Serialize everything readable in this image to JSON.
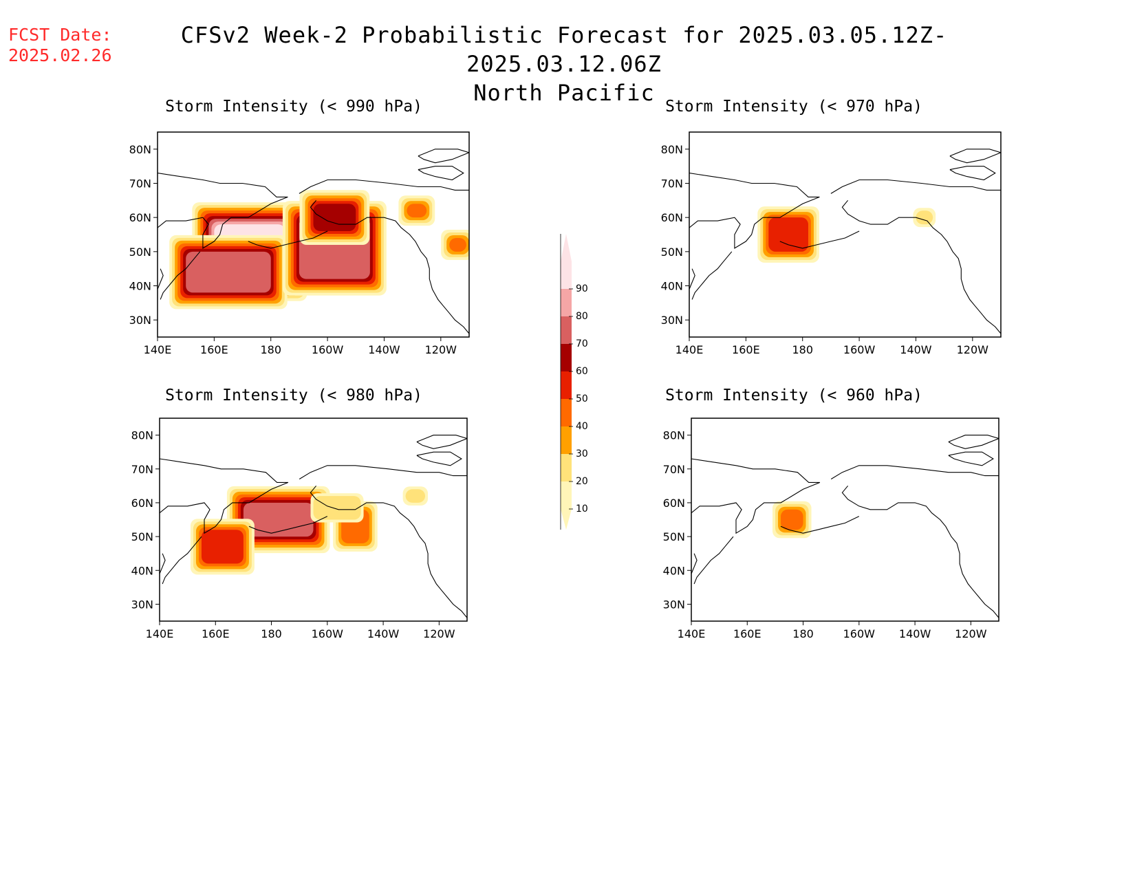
{
  "header": {
    "fcst_label": "FCST Date:",
    "fcst_date": "2025.02.26",
    "title": "CFSv2 Week-2 Probabilistic Forecast for 2025.03.05.12Z-2025.03.12.06Z",
    "subtitle": "North Pacific"
  },
  "axes": {
    "lat_ticks": [
      "80N",
      "70N",
      "60N",
      "50N",
      "40N",
      "30N"
    ],
    "lon_ticks": [
      "140E",
      "160E",
      "180",
      "160W",
      "140W",
      "120W"
    ]
  },
  "panels": [
    {
      "id": "p990",
      "title": "Storm Intensity (< 990 hPa)"
    },
    {
      "id": "p970",
      "title": "Storm Intensity (< 970 hPa)"
    },
    {
      "id": "p980",
      "title": "Storm Intensity (< 980 hPa)"
    },
    {
      "id": "p960",
      "title": "Storm Intensity (< 960 hPa)"
    }
  ],
  "colorbar": {
    "levels": [
      "10",
      "20",
      "30",
      "40",
      "50",
      "60",
      "70",
      "80",
      "90"
    ],
    "colors": [
      "#fff5b8",
      "#ffe27a",
      "#ffa000",
      "#ff6a00",
      "#e82000",
      "#a50000",
      "#d96060",
      "#f5a6a6",
      "#fde3e6"
    ]
  },
  "chart_data": [
    {
      "type": "heatmap",
      "title": "Storm Intensity (< 990 hPa)",
      "region": "North Pacific",
      "lon_range": [
        "140E",
        "110W"
      ],
      "lat_range": [
        "25N",
        "85N"
      ],
      "areas": [
        {
          "level": 90,
          "lon": [
            160,
            185
          ],
          "lat": [
            42,
            58
          ]
        },
        {
          "level": 70,
          "lon": [
            150,
            180
          ],
          "lat": [
            38,
            50
          ]
        },
        {
          "level": 70,
          "lon": [
            190,
            215
          ],
          "lat": [
            42,
            60
          ]
        },
        {
          "level": 60,
          "lon": [
            195,
            210
          ],
          "lat": [
            56,
            64
          ]
        },
        {
          "level": 40,
          "lon": [
            228,
            235
          ],
          "lat": [
            60,
            64
          ]
        },
        {
          "level": 40,
          "lon": [
            243,
            249
          ],
          "lat": [
            50,
            54
          ]
        }
      ]
    },
    {
      "type": "heatmap",
      "title": "Storm Intensity (< 970 hPa)",
      "areas": [
        {
          "level": 50,
          "lon": [
            168,
            182
          ],
          "lat": [
            50,
            60
          ]
        },
        {
          "level": 20,
          "lon": [
            220,
            226
          ],
          "lat": [
            58,
            62
          ]
        }
      ]
    },
    {
      "type": "heatmap",
      "title": "Storm Intensity (< 980 hPa)",
      "areas": [
        {
          "level": 70,
          "lon": [
            170,
            195
          ],
          "lat": [
            50,
            60
          ]
        },
        {
          "level": 50,
          "lon": [
            155,
            170
          ],
          "lat": [
            42,
            52
          ]
        },
        {
          "level": 40,
          "lon": [
            205,
            215
          ],
          "lat": [
            48,
            58
          ]
        },
        {
          "level": 20,
          "lon": [
            195,
            212
          ],
          "lat": [
            55,
            62
          ]
        },
        {
          "level": 20,
          "lon": [
            228,
            235
          ],
          "lat": [
            60,
            64
          ]
        }
      ]
    },
    {
      "type": "heatmap",
      "title": "Storm Intensity (< 960 hPa)",
      "areas": [
        {
          "level": 40,
          "lon": [
            172,
            180
          ],
          "lat": [
            52,
            58
          ]
        }
      ]
    }
  ]
}
